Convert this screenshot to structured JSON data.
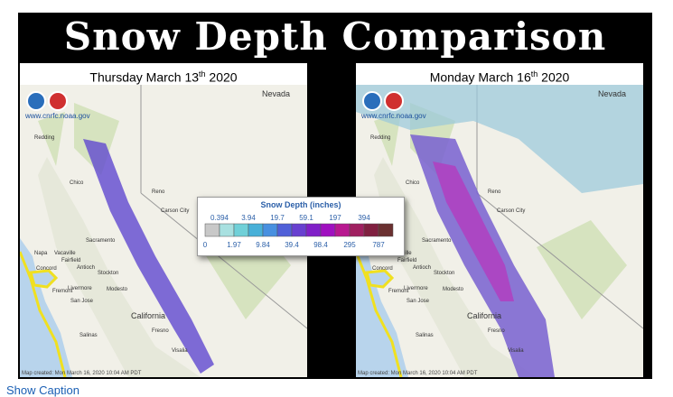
{
  "title": "Snow Depth Comparison",
  "panels": [
    {
      "date_main": "Thursday March 13",
      "suffix": "th",
      "year": "2020"
    },
    {
      "date_main": "Monday March 16",
      "suffix": "th",
      "year": "2020"
    }
  ],
  "agency_url": "www.cnrfc.noaa.gov",
  "map_created": "Map created: Mon March 16, 2020 10:04 AM PDT",
  "map_labels": [
    "Redding",
    "Chico",
    "Reno",
    "Carson City",
    "Sacramento",
    "Napa",
    "Vacaville",
    "Fairfield",
    "Antioch",
    "Stockton",
    "Concord",
    "Livermore",
    "Modesto",
    "Fremont",
    "San Jose",
    "California",
    "Fresno",
    "Salinas",
    "Visalia",
    "Nevada"
  ],
  "legend": {
    "title": "Snow Depth (inches)",
    "upper_labels": [
      0.394,
      3.94,
      19.7,
      59.1,
      197,
      394
    ],
    "lower_labels": [
      0,
      1.97,
      9.84,
      39.4,
      98.4,
      295,
      787
    ],
    "colors": [
      "#c8c8c8",
      "#a8e0e0",
      "#70d0d8",
      "#48b0d8",
      "#4890e0",
      "#5060d8",
      "#6840d0",
      "#8020c8",
      "#a010c0",
      "#b81890",
      "#a02060",
      "#802040",
      "#6a3030"
    ]
  },
  "caption_link": "Show Caption"
}
